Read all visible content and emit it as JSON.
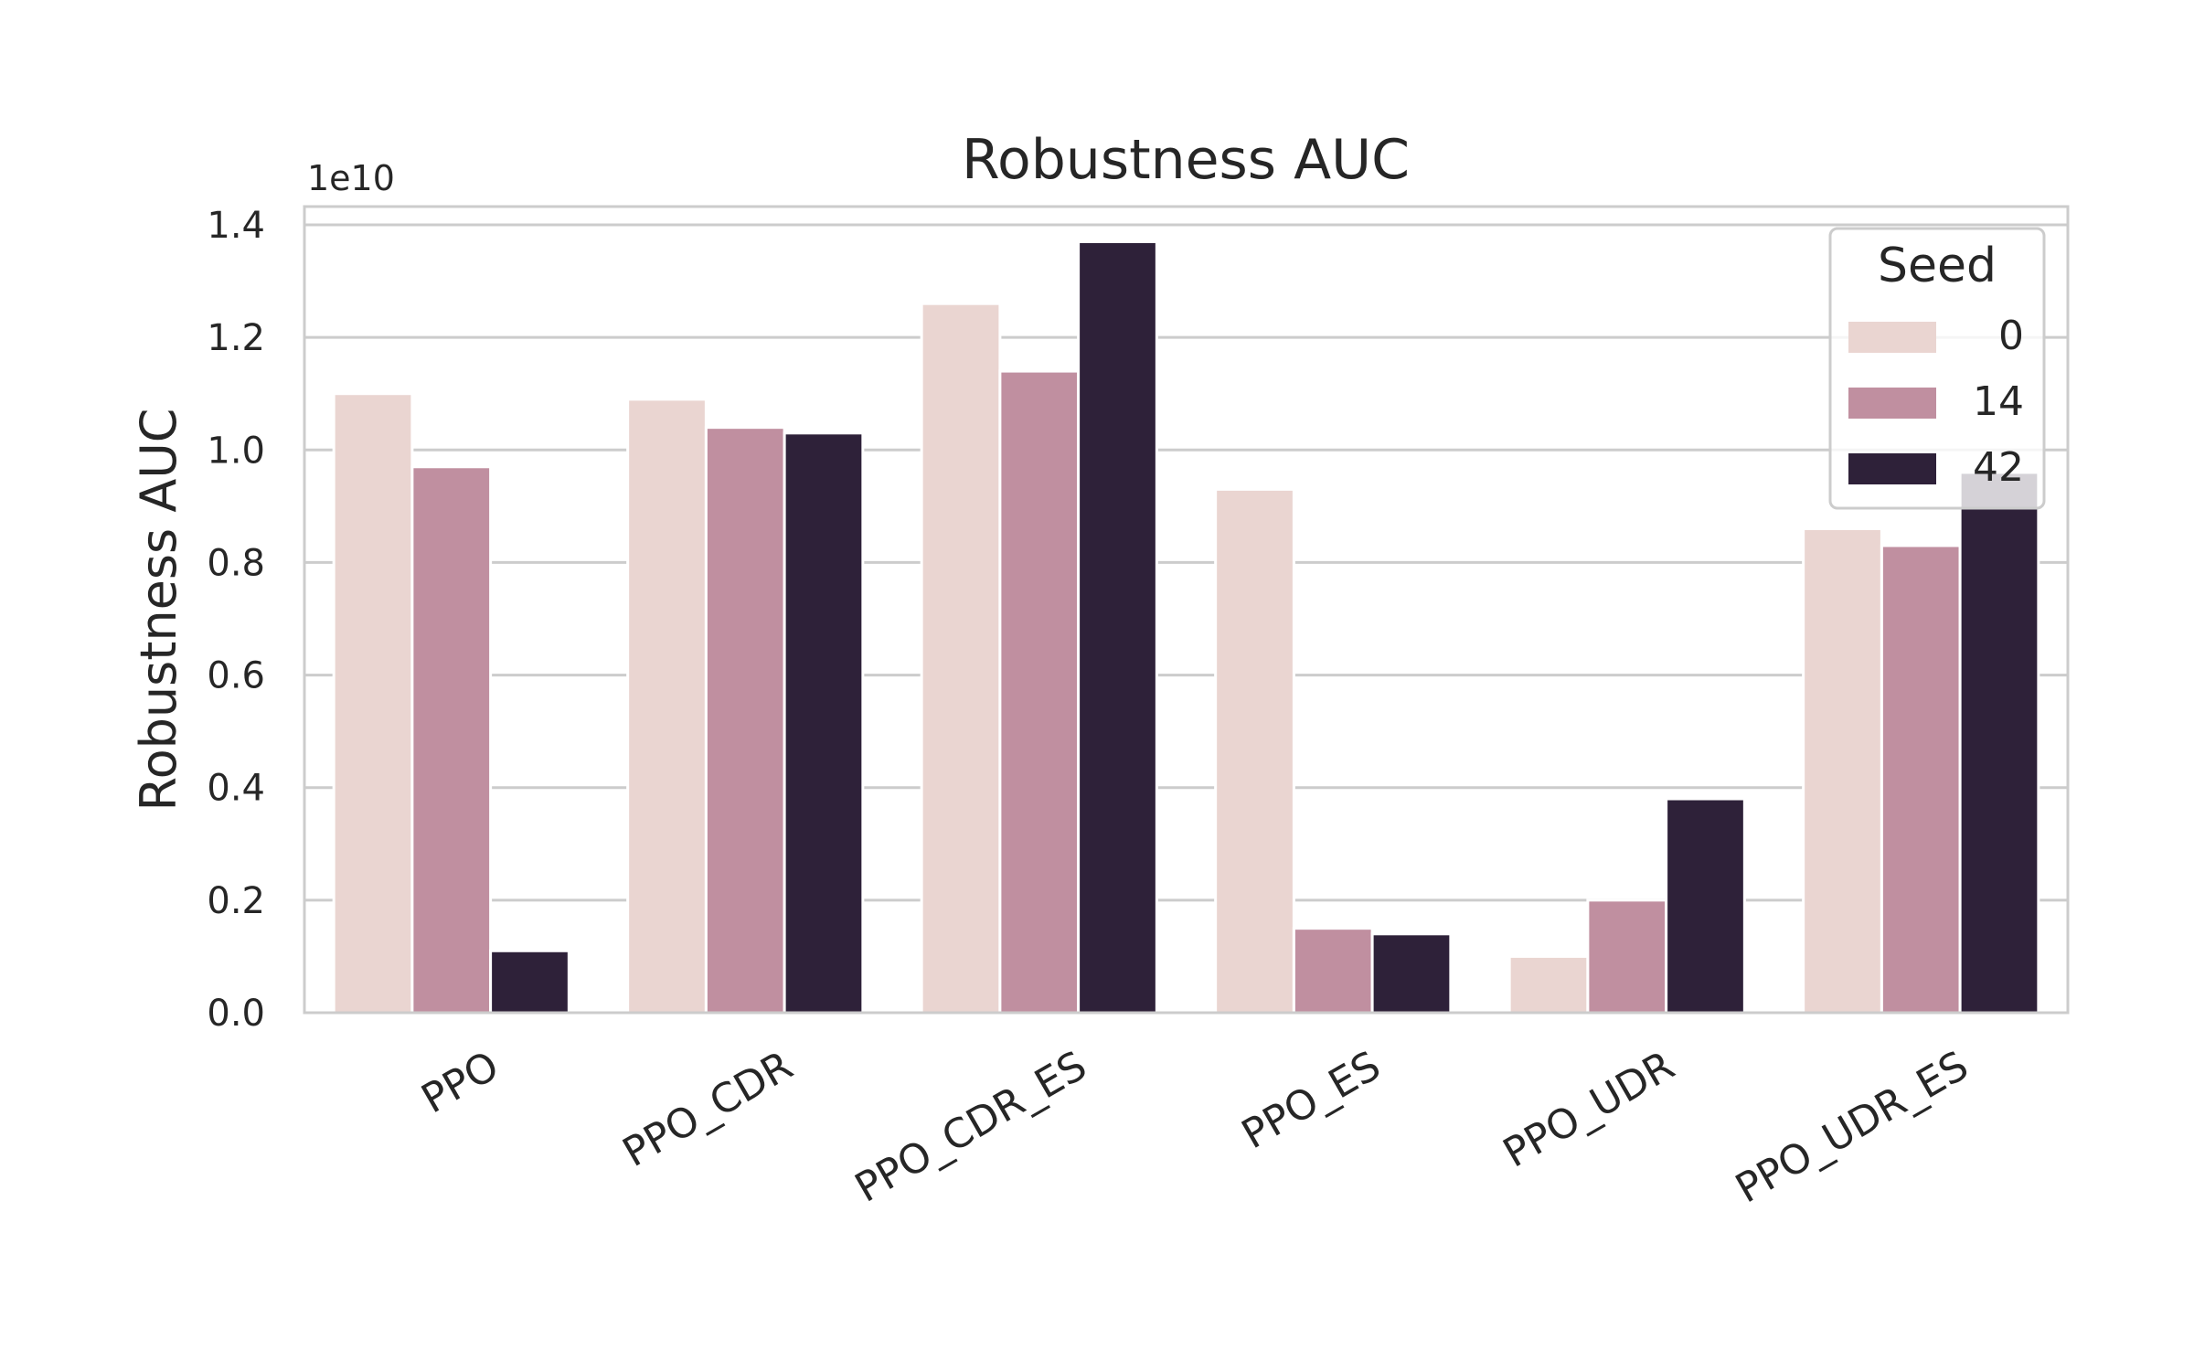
{
  "chart_data": {
    "type": "bar",
    "title": "Robustness AUC",
    "xlabel": "",
    "ylabel": "Robustness AUC",
    "y_offset_label": "1e10",
    "categories": [
      "PPO",
      "PPO_CDR",
      "PPO_CDR_ES",
      "PPO_ES",
      "PPO_UDR",
      "PPO_UDR_ES"
    ],
    "series": [
      {
        "name": "0",
        "color": "#ead5d1",
        "values": [
          1.1,
          1.09,
          1.26,
          0.93,
          0.1,
          0.86
        ]
      },
      {
        "name": "14",
        "color": "#c08fa0",
        "values": [
          0.97,
          1.04,
          1.14,
          0.15,
          0.2,
          0.83
        ]
      },
      {
        "name": "42",
        "color": "#2e2139",
        "values": [
          0.11,
          1.03,
          1.37,
          0.14,
          0.38,
          0.96
        ]
      }
    ],
    "ylim": [
      0,
      1.4
    ],
    "yticks": [
      "0.0",
      "0.2",
      "0.4",
      "0.6",
      "0.8",
      "1.0",
      "1.2",
      "1.4"
    ],
    "grid": true,
    "legend": {
      "title": "Seed",
      "placement": "top-right"
    }
  }
}
